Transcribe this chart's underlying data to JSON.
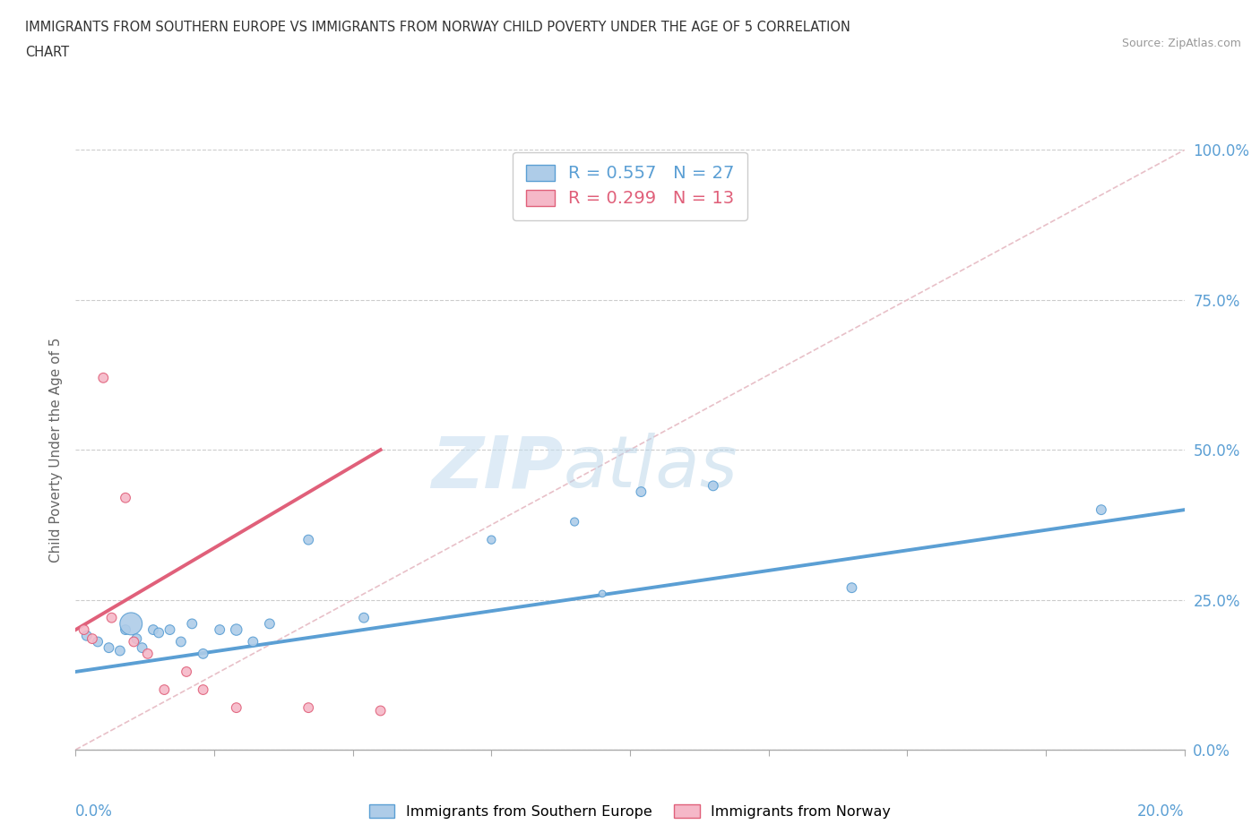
{
  "title_line1": "IMMIGRANTS FROM SOUTHERN EUROPE VS IMMIGRANTS FROM NORWAY CHILD POVERTY UNDER THE AGE OF 5 CORRELATION",
  "title_line2": "CHART",
  "source": "Source: ZipAtlas.com",
  "ylabel": "Child Poverty Under the Age of 5",
  "ytick_vals": [
    0.0,
    25.0,
    50.0,
    75.0,
    100.0
  ],
  "xmin": 0.0,
  "xmax": 20.0,
  "ymin": 0.0,
  "ymax": 100.0,
  "legend1_r": "0.557",
  "legend1_n": "27",
  "legend2_r": "0.299",
  "legend2_n": "13",
  "blue_color": "#aecce8",
  "pink_color": "#f5b8c8",
  "blue_line_color": "#5b9fd4",
  "pink_line_color": "#e0607a",
  "diag_color": "#e8c0c8",
  "watermark_zip": "ZIP",
  "watermark_atlas": "atlas",
  "blue_scatter_x": [
    0.2,
    0.4,
    0.6,
    0.8,
    0.9,
    1.0,
    1.1,
    1.2,
    1.4,
    1.5,
    1.7,
    1.9,
    2.1,
    2.3,
    2.6,
    2.9,
    3.2,
    3.5,
    4.2,
    5.2,
    7.5,
    9.0,
    9.5,
    10.2,
    11.5,
    14.0,
    18.5
  ],
  "blue_scatter_y": [
    19.0,
    18.0,
    17.0,
    16.5,
    20.0,
    21.0,
    18.5,
    17.0,
    20.0,
    19.5,
    20.0,
    18.0,
    21.0,
    16.0,
    20.0,
    20.0,
    18.0,
    21.0,
    35.0,
    22.0,
    35.0,
    38.0,
    26.0,
    43.0,
    44.0,
    27.0,
    40.0
  ],
  "blue_scatter_size": [
    60,
    60,
    60,
    60,
    60,
    320,
    60,
    60,
    60,
    60,
    60,
    60,
    60,
    60,
    60,
    80,
    60,
    60,
    60,
    60,
    44.0,
    43.0,
    30.0,
    60,
    60,
    60,
    60
  ],
  "pink_scatter_x": [
    0.15,
    0.3,
    0.5,
    0.65,
    0.9,
    1.05,
    1.3,
    1.6,
    2.0,
    2.3,
    2.9,
    4.2,
    5.5
  ],
  "pink_scatter_y": [
    20.0,
    18.5,
    62.0,
    22.0,
    42.0,
    18.0,
    16.0,
    10.0,
    13.0,
    10.0,
    7.0,
    7.0,
    6.5
  ],
  "pink_scatter_size": [
    60,
    60,
    60,
    60,
    60,
    60,
    60,
    60,
    60,
    60,
    60,
    60,
    60
  ],
  "blue_line_x": [
    0.0,
    20.0
  ],
  "blue_line_y": [
    13.0,
    40.0
  ],
  "pink_line_x": [
    0.0,
    5.5
  ],
  "pink_line_y": [
    20.0,
    50.0
  ],
  "diag_line_x": [
    0.0,
    20.0
  ],
  "diag_line_y": [
    0.0,
    100.0
  ],
  "xtick_positions": [
    0.0,
    2.5,
    5.0,
    7.5,
    10.0,
    12.5,
    15.0,
    17.5,
    20.0
  ]
}
